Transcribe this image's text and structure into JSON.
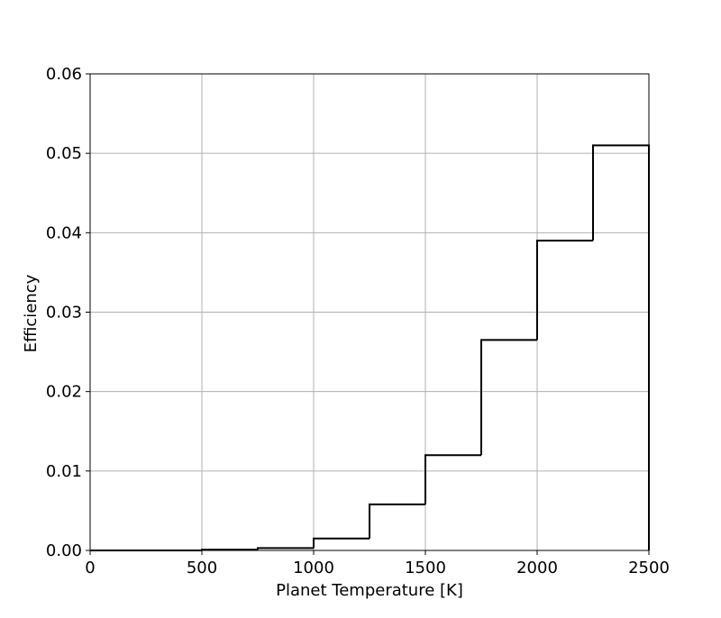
{
  "chart_data": {
    "type": "histogram-step",
    "x_label": "Planet Temperature [K]",
    "y_label": "Efficiency",
    "bins": [
      0,
      250,
      500,
      750,
      1000,
      1250,
      1500,
      1750,
      2000,
      2250,
      2500
    ],
    "values": [
      0,
      0,
      0.0001,
      0.0003,
      0.0015,
      0.0058,
      0.012,
      0.0265,
      0.039,
      0.051
    ],
    "color": "#000000",
    "xlim": [
      0,
      2500
    ],
    "xticks": [
      0,
      500,
      1000,
      1500,
      2000,
      2500
    ],
    "ylim": [
      0,
      0.06
    ],
    "yticks": [
      {
        "value": 0,
        "label": "0.00"
      },
      {
        "value": 0.01,
        "label": "0.01"
      },
      {
        "value": 0.02,
        "label": "0.02"
      },
      {
        "value": 0.03,
        "label": "0.03"
      },
      {
        "value": 0.04,
        "label": "0.04"
      },
      {
        "value": 0.05,
        "label": "0.05"
      },
      {
        "value": 0.06,
        "label": "0.06"
      }
    ],
    "grid": true
  }
}
